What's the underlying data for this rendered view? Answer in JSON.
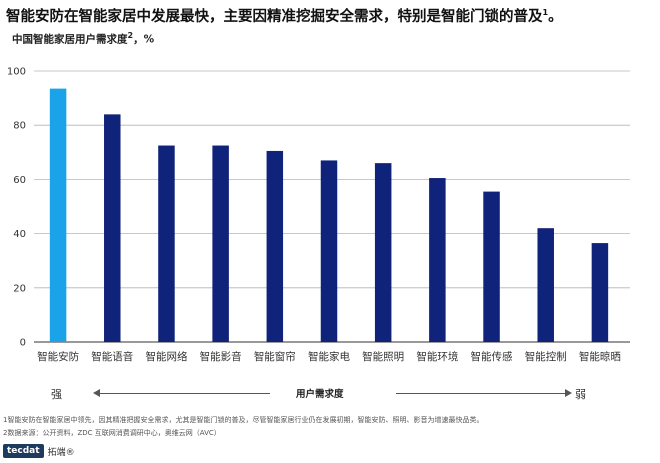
{
  "headline": {
    "text": "智能安防在智能家居中发展最快，主要因精准挖掘安全需求，特别是智能门锁的普及",
    "sup": "1",
    "end": "。"
  },
  "subtitle": {
    "text": "中国智能家居用户需求度",
    "sup": "2",
    "unit": "，%"
  },
  "chart_data": {
    "type": "bar",
    "categories": [
      "智能安防",
      "智能语音",
      "智能网络",
      "智能影音",
      "智能窗帘",
      "智能家电",
      "智能照明",
      "智能环境",
      "智能传感",
      "智能控制",
      "智能晾晒"
    ],
    "values": [
      93.5,
      84,
      72.5,
      72.5,
      70.5,
      67,
      66,
      60.5,
      55.5,
      42,
      36.5
    ],
    "ylim": [
      0,
      100
    ],
    "yticks": [
      "0",
      "20",
      "40",
      "60",
      "80",
      "100"
    ],
    "grid": true,
    "colors": {
      "highlight": "#1aa3e8",
      "default": "#10237a"
    },
    "highlight_index": 0
  },
  "axis_annotation": {
    "strong": "强",
    "weak": "弱",
    "label": "用户需求度"
  },
  "footnotes": {
    "note1": "1智能安防在智能家居中领先，因其精准把握安全需求，尤其是智能门锁的普及，尽管智能家居行业仍在发展初期，智能安防、照明、影音为增速最快品类。",
    "note2": "2数据来源：公开资料，ZDC 互联网消费调研中心，奥维云网（AVC）"
  },
  "logo": {
    "badge": "tecdat",
    "text": "拓端®"
  }
}
